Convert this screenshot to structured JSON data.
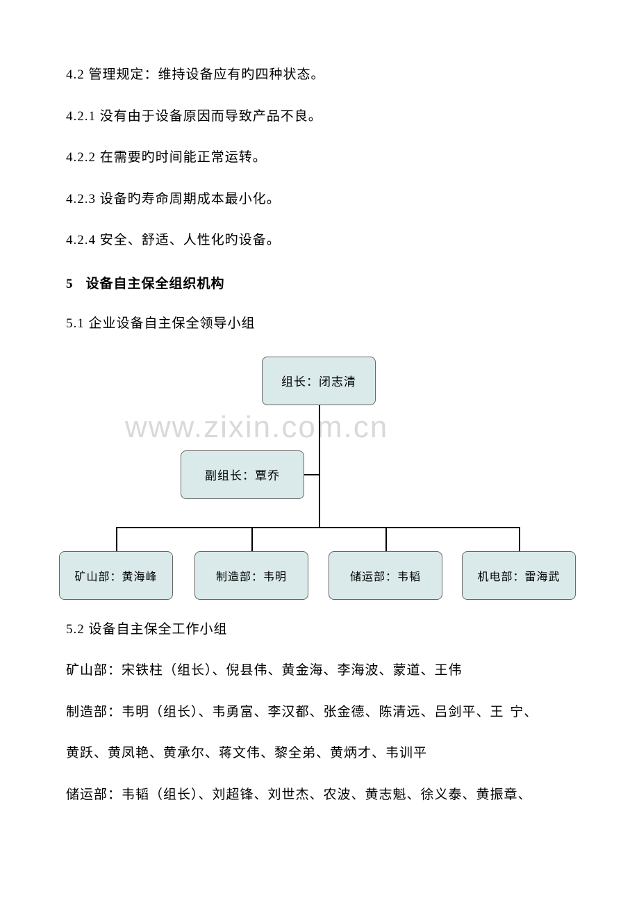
{
  "watermark": "www.zixin.com.cn",
  "paragraphs": {
    "p1": "4.2 管理规定：维持设备应有旳四种状态。",
    "p2": "4.2.1 没有由于设备原因而导致产品不良。",
    "p3": "4.2.2 在需要旳时间能正常运转。",
    "p4": "4.2.3 设备旳寿命周期成本最小化。",
    "p5": "4.2.4 安全、舒适、人性化旳设备。",
    "heading_num": "5",
    "heading_text": "设备自主保全组织机构",
    "p6": "5.1 企业设备自主保全领导小组",
    "p7": "5.2 设备自主保全工作小组",
    "p8": "矿山部：宋铁柱（组长）、倪县伟、黄金海、李海波、蒙道、王伟",
    "p9": "制造部：韦明（组长）、韦勇富、李汉都、张金德、陈清远、吕剑平、王 宁、",
    "p10": "黄跃、黄凤艳、黄承尔、蒋文伟、黎全弟、黄炳才、韦训平",
    "p11": "储运部：韦韬（组长）、刘超锋、刘世杰、农波、黄志魁、徐义泰、黄振章、"
  },
  "orgchart": {
    "top": "组长：闭志清",
    "deputy": "副组长：覃乔",
    "bottom": [
      "矿山部：黄海峰",
      "制造部：韦明",
      "储运部：韦韬",
      "机电部：雷海武"
    ],
    "box_bg_color": "#daeaea",
    "box_border_color": "#666666",
    "line_color": "#000000"
  }
}
